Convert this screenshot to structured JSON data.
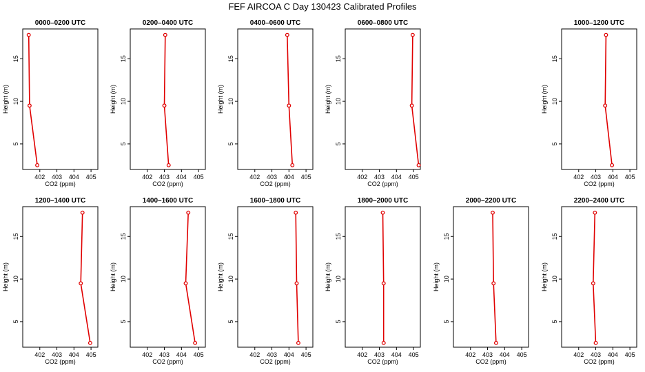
{
  "title": "FEF AIRCOA C  Day 130423  Calibrated Profiles",
  "colors": {
    "series": "#e00000",
    "axis": "#000000"
  },
  "chart_data": [
    {
      "type": "line",
      "title": "0000–0200 UTC",
      "xlabel": "CO2 (ppm)",
      "ylabel": "Height (m)",
      "xlim": [
        401,
        405.4
      ],
      "ylim": [
        2,
        18.5
      ],
      "xticks": [
        402,
        403,
        404,
        405
      ],
      "yticks": [
        5,
        10,
        15
      ],
      "x": [
        401.85,
        401.4,
        401.35
      ],
      "y": [
        2.5,
        9.5,
        17.8
      ]
    },
    {
      "type": "line",
      "title": "0200–0400 UTC",
      "xlabel": "CO2 (ppm)",
      "ylabel": "Height (m)",
      "xlim": [
        401,
        405.4
      ],
      "ylim": [
        2,
        18.5
      ],
      "xticks": [
        402,
        403,
        404,
        405
      ],
      "yticks": [
        5,
        10,
        15
      ],
      "x": [
        403.25,
        403.0,
        403.05
      ],
      "y": [
        2.5,
        9.5,
        17.8
      ]
    },
    {
      "type": "line",
      "title": "0400–0600 UTC",
      "xlabel": "CO2 (ppm)",
      "ylabel": "Height (m)",
      "xlim": [
        401,
        405.4
      ],
      "ylim": [
        2,
        18.5
      ],
      "xticks": [
        402,
        403,
        404,
        405
      ],
      "yticks": [
        5,
        10,
        15
      ],
      "x": [
        404.2,
        404.0,
        403.9
      ],
      "y": [
        2.5,
        9.5,
        17.8
      ]
    },
    {
      "type": "line",
      "title": "0600–0800 UTC",
      "xlabel": "CO2 (ppm)",
      "ylabel": "Height (m)",
      "xlim": [
        401,
        405.4
      ],
      "ylim": [
        2,
        18.5
      ],
      "xticks": [
        402,
        403,
        404,
        405
      ],
      "yticks": [
        5,
        10,
        15
      ],
      "x": [
        405.3,
        404.9,
        404.95
      ],
      "y": [
        2.5,
        9.5,
        17.8
      ]
    },
    {
      "type": "line",
      "title": "1000–1200 UTC",
      "xlabel": "CO2 (ppm)",
      "ylabel": "Height (m)",
      "xlim": [
        401,
        405.4
      ],
      "ylim": [
        2,
        18.5
      ],
      "xticks": [
        402,
        403,
        404,
        405
      ],
      "yticks": [
        5,
        10,
        15
      ],
      "x": [
        403.95,
        403.55,
        403.6
      ],
      "y": [
        2.5,
        9.5,
        17.8
      ]
    },
    {
      "type": "line",
      "title": "1200–1400 UTC",
      "xlabel": "CO2 (ppm)",
      "ylabel": "Height (m)",
      "xlim": [
        401,
        405.4
      ],
      "ylim": [
        2,
        18.5
      ],
      "xticks": [
        402,
        403,
        404,
        405
      ],
      "yticks": [
        5,
        10,
        15
      ],
      "x": [
        404.95,
        404.4,
        404.5
      ],
      "y": [
        2.5,
        9.5,
        17.8
      ]
    },
    {
      "type": "line",
      "title": "1400–1600 UTC",
      "xlabel": "CO2 (ppm)",
      "ylabel": "Height (m)",
      "xlim": [
        401,
        405.4
      ],
      "ylim": [
        2,
        18.5
      ],
      "xticks": [
        402,
        403,
        404,
        405
      ],
      "yticks": [
        5,
        10,
        15
      ],
      "x": [
        404.8,
        404.25,
        404.4
      ],
      "y": [
        2.5,
        9.5,
        17.8
      ]
    },
    {
      "type": "line",
      "title": "1600–1800 UTC",
      "xlabel": "CO2 (ppm)",
      "ylabel": "Height (m)",
      "xlim": [
        401,
        405.4
      ],
      "ylim": [
        2,
        18.5
      ],
      "xticks": [
        402,
        403,
        404,
        405
      ],
      "yticks": [
        5,
        10,
        15
      ],
      "x": [
        404.55,
        404.45,
        404.4
      ],
      "y": [
        2.5,
        9.5,
        17.8
      ]
    },
    {
      "type": "line",
      "title": "1800–2000 UTC",
      "xlabel": "CO2 (ppm)",
      "ylabel": "Height (m)",
      "xlim": [
        401,
        405.4
      ],
      "ylim": [
        2,
        18.5
      ],
      "xticks": [
        402,
        403,
        404,
        405
      ],
      "yticks": [
        5,
        10,
        15
      ],
      "x": [
        403.25,
        403.25,
        403.2
      ],
      "y": [
        2.5,
        9.5,
        17.8
      ]
    },
    {
      "type": "line",
      "title": "2000–2200 UTC",
      "xlabel": "CO2 (ppm)",
      "ylabel": "Height (m)",
      "xlim": [
        401,
        405.4
      ],
      "ylim": [
        2,
        18.5
      ],
      "xticks": [
        402,
        403,
        404,
        405
      ],
      "yticks": [
        5,
        10,
        15
      ],
      "x": [
        403.5,
        403.35,
        403.3
      ],
      "y": [
        2.5,
        9.5,
        17.8
      ]
    },
    {
      "type": "line",
      "title": "2200–2400 UTC",
      "xlabel": "CO2 (ppm)",
      "ylabel": "Height (m)",
      "xlim": [
        401,
        405.4
      ],
      "ylim": [
        2,
        18.5
      ],
      "xticks": [
        402,
        403,
        404,
        405
      ],
      "yticks": [
        5,
        10,
        15
      ],
      "x": [
        403.0,
        402.85,
        402.95
      ],
      "y": [
        2.5,
        9.5,
        17.8
      ]
    }
  ]
}
